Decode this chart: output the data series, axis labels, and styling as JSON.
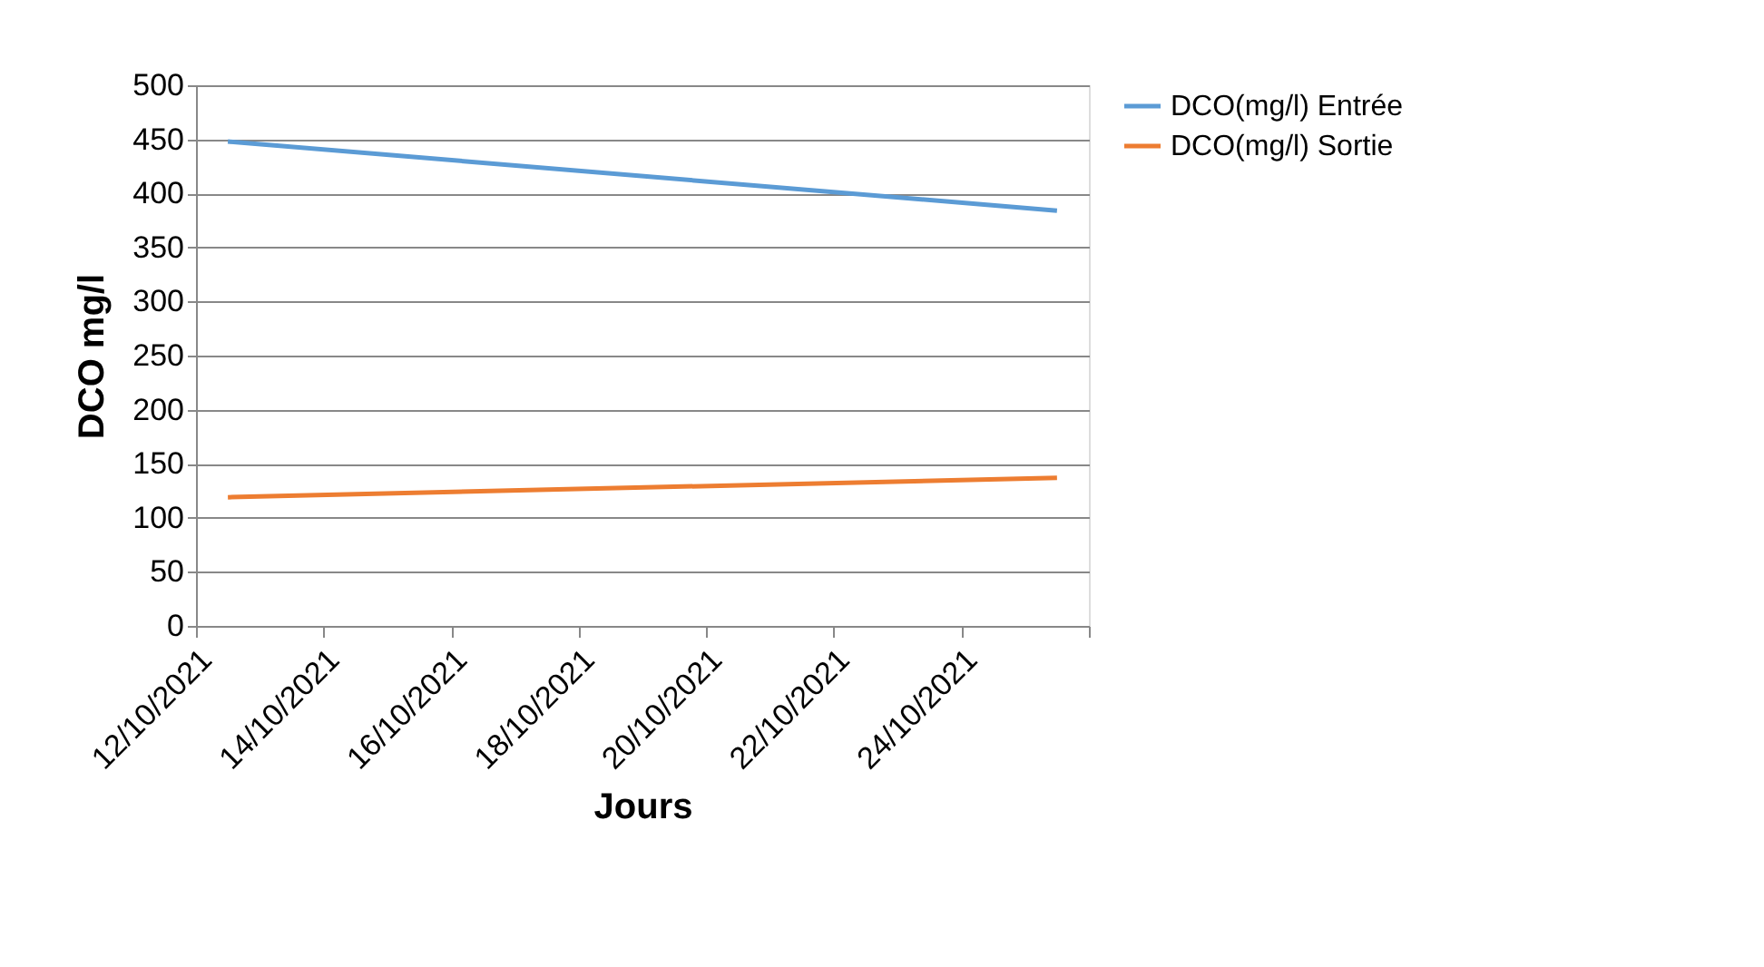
{
  "chart_data": {
    "type": "line",
    "xlabel": "Jours",
    "ylabel": "DCO mg/l",
    "x": [
      "2021-10-12T12:00",
      "2021-10-25T12:00"
    ],
    "series": [
      {
        "name": "DCO(mg/l) Entrée",
        "color": "#5b9bd5",
        "values": [
          448,
          384
        ]
      },
      {
        "name": "DCO(mg/l) Sortie",
        "color": "#ed7d31",
        "values": [
          119,
          137
        ]
      }
    ],
    "xlim": [
      "2021-10-12",
      "2021-10-26"
    ],
    "xticks": [
      {
        "value": "2021-10-12",
        "label": "12/10/2021"
      },
      {
        "value": "2021-10-14",
        "label": "14/10/2021"
      },
      {
        "value": "2021-10-16",
        "label": "16/10/2021"
      },
      {
        "value": "2021-10-18",
        "label": "18/10/2021"
      },
      {
        "value": "2021-10-20",
        "label": "20/10/2021"
      },
      {
        "value": "2021-10-22",
        "label": "22/10/2021"
      },
      {
        "value": "2021-10-24",
        "label": "24/10/2021"
      },
      {
        "value": "2021-10-26",
        "label": null
      }
    ],
    "ylim": [
      0,
      500
    ],
    "yticks": [
      0,
      50,
      100,
      150,
      200,
      250,
      300,
      350,
      400,
      450,
      500
    ],
    "grid": "y",
    "legend": "right",
    "marker": "none",
    "line_style": "solid"
  }
}
